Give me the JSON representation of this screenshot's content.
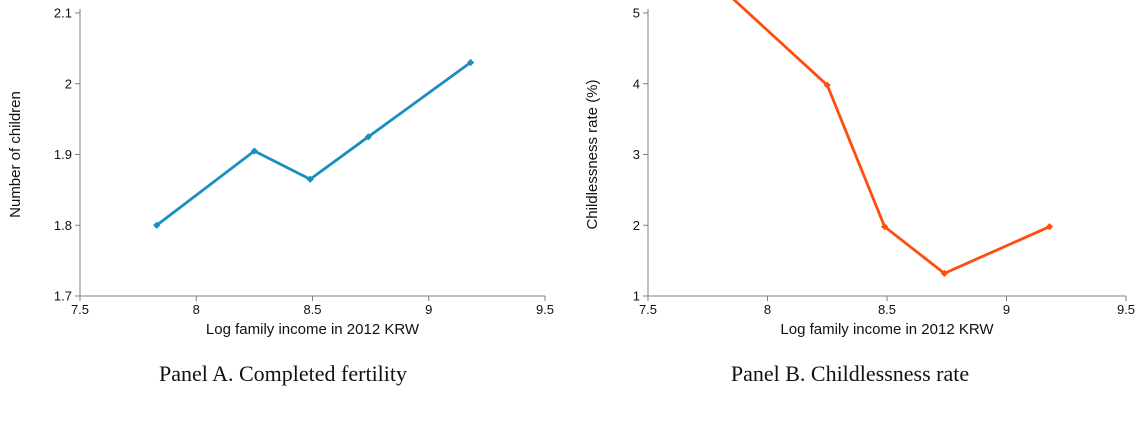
{
  "chart_data": [
    {
      "type": "line",
      "caption": "Panel A. Completed fertility",
      "xlabel": "Log family income in 2012 KRW",
      "ylabel": "Number of children",
      "xlim": [
        7.5,
        9.5
      ],
      "ylim": [
        1.7,
        2.1
      ],
      "xticks": [
        7.5,
        8,
        8.5,
        9,
        9.5
      ],
      "xtick_labels": [
        "7.5",
        "8",
        "8.5",
        "9",
        "9.5"
      ],
      "yticks": [
        1.7,
        1.8,
        1.9,
        2.0,
        2.1
      ],
      "ytick_labels": [
        "1.7",
        "1.8",
        "1.9",
        "2",
        "2.1"
      ],
      "grid": false,
      "series": [
        {
          "color": "#1a8fbf",
          "x": [
            7.83,
            8.25,
            8.49,
            8.74,
            9.18
          ],
          "y": [
            1.8,
            1.905,
            1.865,
            1.925,
            2.03
          ]
        }
      ]
    },
    {
      "type": "line",
      "caption": "Panel B. Childlessness rate",
      "xlabel": "Log family income in 2012 KRW",
      "ylabel": "Childlessness rate (%)",
      "xlim": [
        7.5,
        9.5
      ],
      "ylim": [
        1,
        5
      ],
      "xticks": [
        7.5,
        8,
        8.5,
        9,
        9.5
      ],
      "xtick_labels": [
        "7.5",
        "8",
        "8.5",
        "9",
        "9.5"
      ],
      "yticks": [
        1,
        2,
        3,
        4,
        5
      ],
      "ytick_labels": [
        "1",
        "2",
        "3",
        "4",
        "5"
      ],
      "grid": false,
      "series": [
        {
          "color": "#ff4d0d",
          "x": [
            7.83,
            8.25,
            8.49,
            8.74,
            9.18
          ],
          "y": [
            5.28,
            3.98,
            1.98,
            1.32,
            1.98
          ]
        }
      ]
    }
  ]
}
